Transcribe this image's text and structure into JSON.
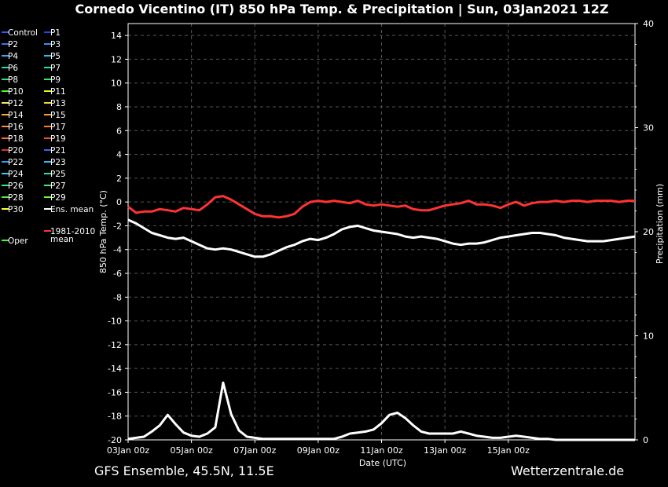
{
  "title": "Cornedo Vicentino  (IT)  850 hPa Temp. & Precipitation | Sun, 03Jan2021 12Z",
  "footer": {
    "left": "GFS Ensemble, 45.5N, 11.5E",
    "right": "Wetterzentrale.de"
  },
  "chart_data": {
    "type": "line",
    "ylabel": "850 hPa Temp. (°C)",
    "y2label": "Precipitation (mm)",
    "xlabel": "Date (UTC)",
    "ylim": [
      -20,
      15
    ],
    "y2lim": [
      0,
      40
    ],
    "yticks": [
      14,
      12,
      10,
      8,
      6,
      4,
      2,
      0,
      -2,
      -4,
      -6,
      -8,
      -10,
      -12,
      -14,
      -16,
      -18,
      -20
    ],
    "y2ticks": [
      40,
      30,
      20,
      10,
      0
    ],
    "xticks": [
      "03Jan 00z",
      "05Jan 00z",
      "07Jan 00z",
      "09Jan 00z",
      "11Jan 00z",
      "13Jan 00z",
      "15Jan 00z"
    ],
    "xlim_hours": [
      0,
      384
    ],
    "grid": true,
    "legend": {
      "placement": "left",
      "entries": [
        {
          "label": "Control",
          "color": "#3355ff"
        },
        {
          "label": "P1",
          "color": "#2244ee"
        },
        {
          "label": "P2",
          "color": "#2e7cf0"
        },
        {
          "label": "P3",
          "color": "#3590f0"
        },
        {
          "label": "P4",
          "color": "#33a6f5"
        },
        {
          "label": "P5",
          "color": "#22c0e8"
        },
        {
          "label": "P6",
          "color": "#22d6b8"
        },
        {
          "label": "P7",
          "color": "#22e0a8"
        },
        {
          "label": "P8",
          "color": "#33e070"
        },
        {
          "label": "P9",
          "color": "#33ee55"
        },
        {
          "label": "P10",
          "color": "#44ff22"
        },
        {
          "label": "P11",
          "color": "#eeee22"
        },
        {
          "label": "P12",
          "color": "#ffe066"
        },
        {
          "label": "P13",
          "color": "#ffcc33"
        },
        {
          "label": "P14",
          "color": "#ffaa33"
        },
        {
          "label": "P15",
          "color": "#ff9922"
        },
        {
          "label": "P16",
          "color": "#ff8844"
        },
        {
          "label": "P17",
          "color": "#ff7733"
        },
        {
          "label": "P18",
          "color": "#ff6633"
        },
        {
          "label": "P19",
          "color": "#ee5522"
        },
        {
          "label": "P20",
          "color": "#dd3322"
        },
        {
          "label": "P21",
          "color": "#3366ee"
        },
        {
          "label": "P22",
          "color": "#3399ff"
        },
        {
          "label": "P23",
          "color": "#33bbff"
        },
        {
          "label": "P24",
          "color": "#33ccee"
        },
        {
          "label": "P25",
          "color": "#33ddaa"
        },
        {
          "label": "P26",
          "color": "#33ee88"
        },
        {
          "label": "P27",
          "color": "#44ee66"
        },
        {
          "label": "P28",
          "color": "#55ee44"
        },
        {
          "label": "P29",
          "color": "#66ff33"
        },
        {
          "label": "P30",
          "color": "#ffff33"
        },
        {
          "label": "Ens. mean",
          "color": "#ffffff"
        },
        {
          "label": "Oper",
          "color": "#33ff33"
        },
        {
          "label": "1981-2010\nmean",
          "color": "#ff3333"
        }
      ]
    },
    "x_hours": [
      0,
      6,
      12,
      18,
      24,
      30,
      36,
      42,
      48,
      54,
      60,
      66,
      72,
      78,
      84,
      90,
      96,
      102,
      108,
      114,
      120,
      126,
      132,
      138,
      144,
      150,
      156,
      162,
      168,
      174,
      180,
      186,
      192,
      198,
      204,
      210,
      216,
      222,
      228,
      234,
      240,
      246,
      252,
      258,
      264,
      270,
      276,
      282,
      288,
      294,
      300,
      306,
      312,
      318,
      324,
      330,
      336,
      342,
      348,
      354,
      360,
      366,
      372,
      378,
      384
    ],
    "series": [
      {
        "name": "1981-2010\nmean",
        "color": "#ff3333",
        "axis": "temp",
        "values": [
          -0.4,
          -0.9,
          -0.8,
          -0.8,
          -0.6,
          -0.7,
          -0.8,
          -0.5,
          -0.6,
          -0.7,
          -0.2,
          0.4,
          0.5,
          0.2,
          -0.2,
          -0.6,
          -1.0,
          -1.2,
          -1.2,
          -1.3,
          -1.2,
          -1.0,
          -0.4,
          0.0,
          0.1,
          0.0,
          0.1,
          0.0,
          -0.1,
          0.1,
          -0.2,
          -0.3,
          -0.2,
          -0.3,
          -0.4,
          -0.3,
          -0.6,
          -0.7,
          -0.7,
          -0.5,
          -0.3,
          -0.2,
          -0.1,
          0.1,
          -0.2,
          -0.2,
          -0.3,
          -0.5,
          -0.2,
          0.0,
          -0.3,
          -0.1,
          0.0,
          0.0,
          0.1,
          0.0,
          0.1,
          0.1,
          0.0,
          0.1,
          0.1,
          0.1,
          0.0,
          0.1,
          0.1
        ]
      },
      {
        "name": "Ens. mean",
        "color": "#ffffff",
        "axis": "temp",
        "values": [
          -1.5,
          -1.8,
          -2.2,
          -2.6,
          -2.8,
          -3.0,
          -3.1,
          -3.0,
          -3.3,
          -3.6,
          -3.9,
          -4.0,
          -3.9,
          -4.0,
          -4.2,
          -4.4,
          -4.6,
          -4.6,
          -4.4,
          -4.1,
          -3.8,
          -3.6,
          -3.3,
          -3.1,
          -3.2,
          -3.0,
          -2.7,
          -2.3,
          -2.1,
          -2.0,
          -2.2,
          -2.4,
          -2.5,
          -2.6,
          -2.7,
          -2.9,
          -3.0,
          -2.9,
          -3.0,
          -3.1,
          -3.3,
          -3.5,
          -3.6,
          -3.5,
          -3.5,
          -3.4,
          -3.2,
          -3.0,
          -2.9,
          -2.8,
          -2.7,
          -2.6,
          -2.6,
          -2.7,
          -2.8,
          -3.0,
          -3.1,
          -3.2,
          -3.3,
          -3.3,
          -3.3,
          -3.2,
          -3.1,
          -3.0,
          -2.9
        ]
      },
      {
        "name": "Ens. mean",
        "color": "#ffffff",
        "axis": "precip",
        "values": [
          0.1,
          0.2,
          0.3,
          0.8,
          1.4,
          2.4,
          1.5,
          0.7,
          0.4,
          0.3,
          0.6,
          1.2,
          5.5,
          2.5,
          0.9,
          0.3,
          0.2,
          0.1,
          0.1,
          0.1,
          0.1,
          0.1,
          0.1,
          0.1,
          0.1,
          0.1,
          0.1,
          0.3,
          0.6,
          0.7,
          0.8,
          1.0,
          1.6,
          2.4,
          2.6,
          2.1,
          1.4,
          0.8,
          0.6,
          0.6,
          0.6,
          0.6,
          0.8,
          0.6,
          0.4,
          0.3,
          0.2,
          0.2,
          0.3,
          0.4,
          0.3,
          0.2,
          0.1,
          0.1,
          0.0,
          0.0,
          0.0,
          0.0,
          0.0,
          0.0,
          0.0,
          0.0,
          0.0,
          0.0,
          0.0
        ]
      }
    ]
  }
}
